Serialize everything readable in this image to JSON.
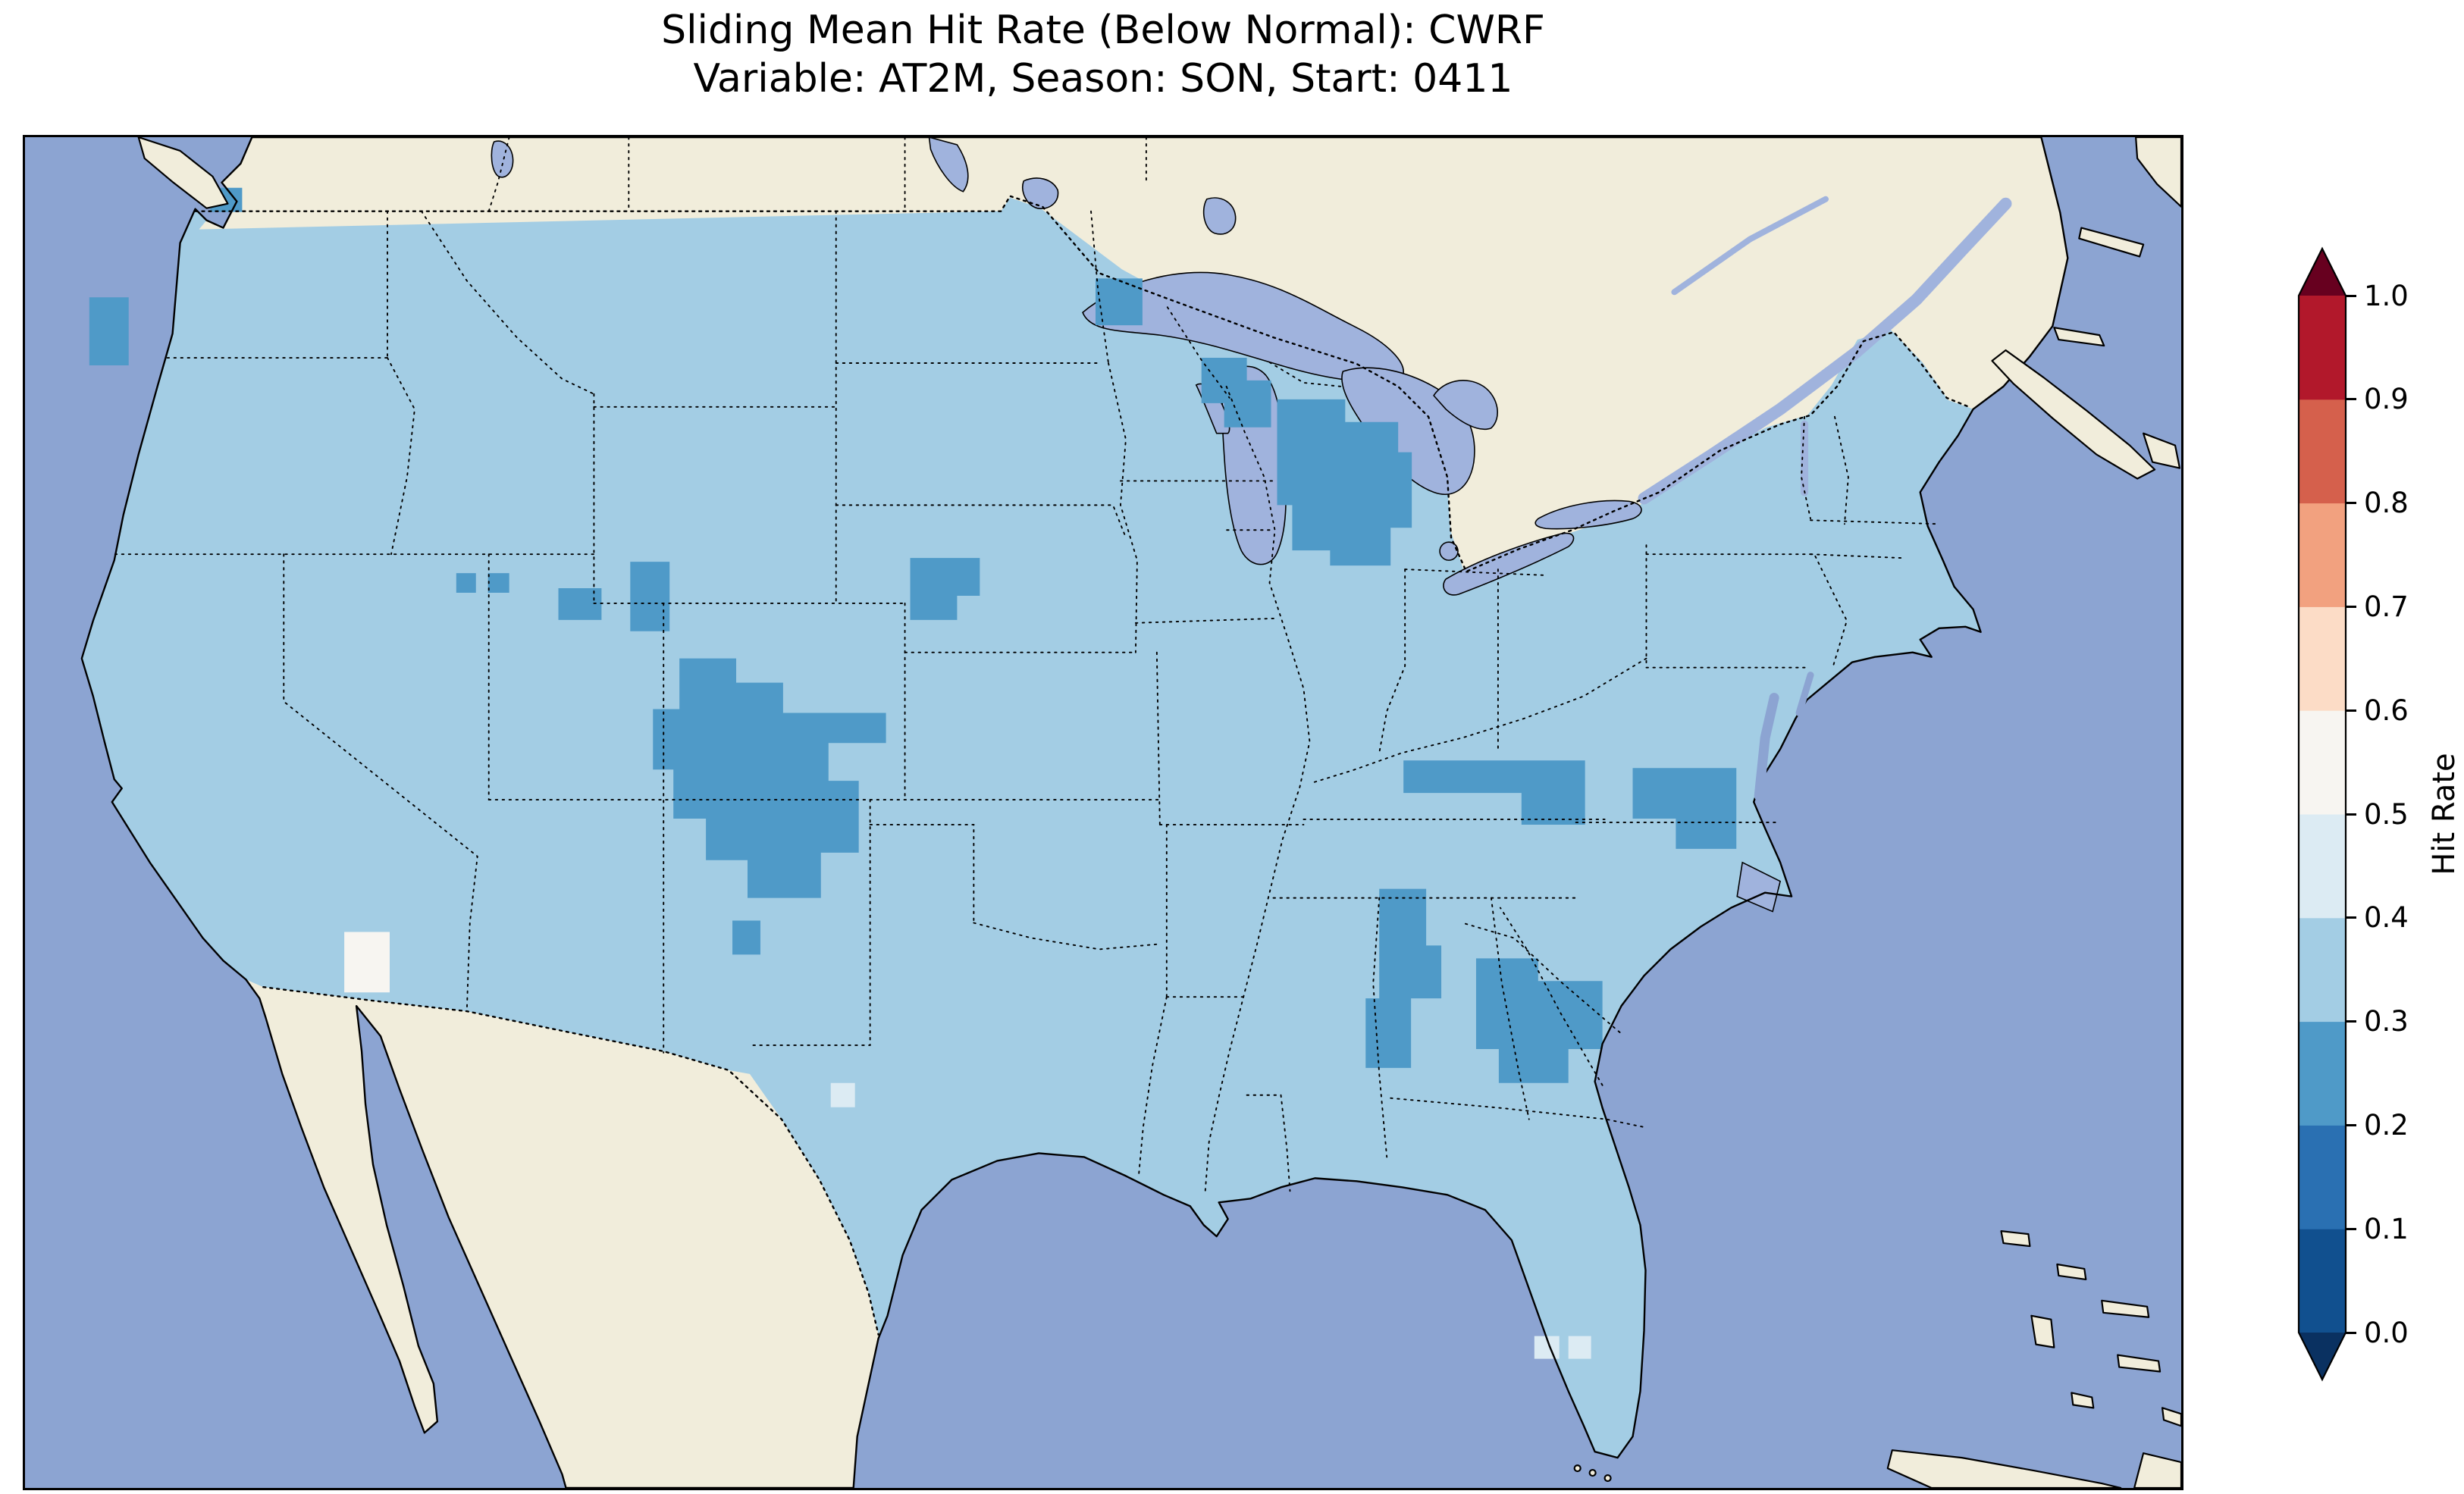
{
  "chart_data": {
    "type": "heatmap",
    "title_line1": "Sliding Mean Hit Rate (Below Normal): CWRF",
    "title_line2": "Variable: AT2M, Season: SON, Start: 0411",
    "metric": "Sliding Mean Hit Rate",
    "category": "Below Normal",
    "model": "CWRF",
    "variable": "AT2M",
    "season": "SON",
    "start": "0411",
    "colorbar": {
      "label": "Hit Rate",
      "min": 0.0,
      "max": 1.0,
      "tick_step": 0.1,
      "ticks": [
        "0.0",
        "0.1",
        "0.2",
        "0.3",
        "0.4",
        "0.5",
        "0.6",
        "0.7",
        "0.8",
        "0.9",
        "1.0"
      ],
      "bins": [
        {
          "range": [
            0.0,
            0.1
          ],
          "color": "#11508f"
        },
        {
          "range": [
            0.1,
            0.2
          ],
          "color": "#2a70b2"
        },
        {
          "range": [
            0.2,
            0.3
          ],
          "color": "#4f9ac8"
        },
        {
          "range": [
            0.3,
            0.4
          ],
          "color": "#a3cde4"
        },
        {
          "range": [
            0.4,
            0.5
          ],
          "color": "#dcebf3"
        },
        {
          "range": [
            0.5,
            0.6
          ],
          "color": "#f7f5f1"
        },
        {
          "range": [
            0.6,
            0.7
          ],
          "color": "#fcdcc6"
        },
        {
          "range": [
            0.7,
            0.8
          ],
          "color": "#f2a17f"
        },
        {
          "range": [
            0.8,
            0.9
          ],
          "color": "#d5604c"
        },
        {
          "range": [
            0.9,
            1.0
          ],
          "color": "#b2182b"
        }
      ],
      "extend_under_color": "#0a3161",
      "extend_over_color": "#67001f",
      "orientation": "vertical",
      "extend": "both"
    },
    "map_values": {
      "dominant_conus_bin": "0.3-0.4",
      "lower_hit_regions_bin_0.2-0.3": [
        "oregon-coast",
        "nw-washington",
        "nw-colorado",
        "colorado-utah-border",
        "nevada-spots",
        "four-corners",
        "kansas-nebraska",
        "minnesota-lake-superior",
        "wisconsin-green-bay",
        "lower-michigan",
        "tennessee",
        "mississippi-alabama",
        "georgia",
        "north-carolina-coast",
        "southern-new-mexico"
      ],
      "higher_hit_regions_bin_0.5-0.6": [
        "southwest-arizona"
      ],
      "mid_regions_bin_0.4-0.5": [
        "south-florida-spots",
        "south-texas-spot"
      ]
    },
    "basemap": {
      "ocean_color": "#8ca4d2",
      "land_color": "#f1eddb",
      "lake_color": "#a0b3dd",
      "features": [
        "coastlines",
        "dotted-state-borders",
        "dotted-country-borders",
        "great-lakes",
        "vancouver-island",
        "baja-california",
        "gulf-of-st-lawrence",
        "nova-scotia",
        "cuba",
        "bahamas",
        "florida-keys"
      ]
    }
  }
}
